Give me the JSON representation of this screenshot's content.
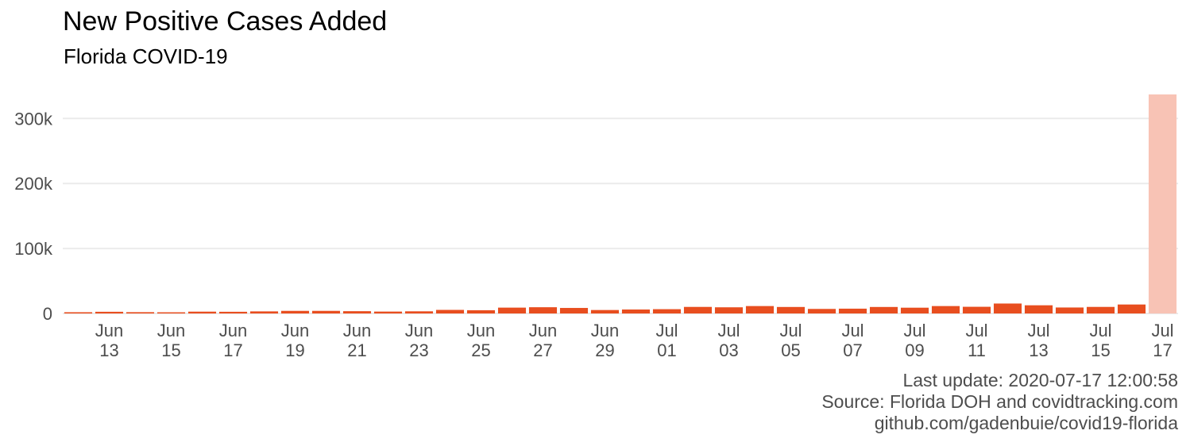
{
  "chart_data": {
    "type": "bar",
    "title": "New Positive Cases Added",
    "subtitle": "Florida COVID-19",
    "xlabel": "",
    "ylabel": "",
    "ylim": [
      0,
      337000
    ],
    "y_ticks": [
      {
        "value": 0,
        "label": "0"
      },
      {
        "value": 100000,
        "label": "100k"
      },
      {
        "value": 200000,
        "label": "200k"
      },
      {
        "value": 300000,
        "label": "300k"
      }
    ],
    "x_tick_labels": [
      {
        "index": 1,
        "month": "Jun",
        "day": "13"
      },
      {
        "index": 3,
        "month": "Jun",
        "day": "15"
      },
      {
        "index": 5,
        "month": "Jun",
        "day": "17"
      },
      {
        "index": 7,
        "month": "Jun",
        "day": "19"
      },
      {
        "index": 9,
        "month": "Jun",
        "day": "21"
      },
      {
        "index": 11,
        "month": "Jun",
        "day": "23"
      },
      {
        "index": 13,
        "month": "Jun",
        "day": "25"
      },
      {
        "index": 15,
        "month": "Jun",
        "day": "27"
      },
      {
        "index": 17,
        "month": "Jun",
        "day": "29"
      },
      {
        "index": 19,
        "month": "Jul",
        "day": "01"
      },
      {
        "index": 21,
        "month": "Jul",
        "day": "03"
      },
      {
        "index": 23,
        "month": "Jul",
        "day": "05"
      },
      {
        "index": 25,
        "month": "Jul",
        "day": "07"
      },
      {
        "index": 27,
        "month": "Jul",
        "day": "09"
      },
      {
        "index": 29,
        "month": "Jul",
        "day": "11"
      },
      {
        "index": 31,
        "month": "Jul",
        "day": "13"
      },
      {
        "index": 33,
        "month": "Jul",
        "day": "15"
      },
      {
        "index": 35,
        "month": "Jul",
        "day": "17"
      }
    ],
    "categories": [
      "2020-06-12",
      "2020-06-13",
      "2020-06-14",
      "2020-06-15",
      "2020-06-16",
      "2020-06-17",
      "2020-06-18",
      "2020-06-19",
      "2020-06-20",
      "2020-06-21",
      "2020-06-22",
      "2020-06-23",
      "2020-06-24",
      "2020-06-25",
      "2020-06-26",
      "2020-06-27",
      "2020-06-28",
      "2020-06-29",
      "2020-06-30",
      "2020-07-01",
      "2020-07-02",
      "2020-07-03",
      "2020-07-04",
      "2020-07-05",
      "2020-07-06",
      "2020-07-07",
      "2020-07-08",
      "2020-07-09",
      "2020-07-10",
      "2020-07-11",
      "2020-07-12",
      "2020-07-13",
      "2020-07-14",
      "2020-07-15",
      "2020-07-16",
      "2020-07-17"
    ],
    "values": [
      1900,
      2600,
      2000,
      1800,
      2800,
      2600,
      3200,
      4000,
      4000,
      3500,
      2900,
      3300,
      5500,
      5000,
      9000,
      9600,
      8500,
      5300,
      6100,
      6600,
      10100,
      9500,
      11400,
      10000,
      7000,
      7400,
      10000,
      8900,
      11400,
      10300,
      15300,
      12600,
      9200,
      10100,
      13800,
      337000
    ],
    "highlight": {
      "index": 35,
      "color": "#f8c3b5"
    },
    "bar_color": "#e84e1f",
    "grid": true,
    "legend": "none"
  },
  "caption": {
    "line1": "Last update: 2020-07-17 12:00:58",
    "line2": "Source: Florida DOH and covidtracking.com",
    "line3": "github.com/gadenbuie/covid19-florida"
  },
  "colors": {
    "bar": "#e84e1f",
    "highlight": "#f8c3b5",
    "grid": "#ebebeb",
    "axis_text": "#4d4d4d"
  }
}
